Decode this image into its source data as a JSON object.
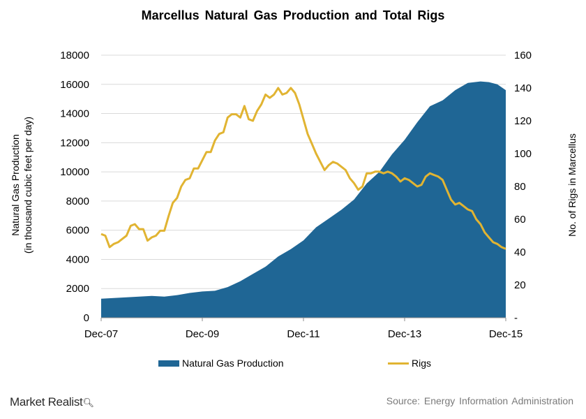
{
  "chart_data": {
    "type": "area+line",
    "title": "Marcellus  Natural  Gas  Production  and  Total  Rigs",
    "x_tick_labels": [
      "Dec-07",
      "Dec-09",
      "Dec-11",
      "Dec-13",
      "Dec-15"
    ],
    "y_left": {
      "label_line1": "Natural Gas Production",
      "label_line2": "(in thousand cubic feet per day)",
      "range": [
        0,
        18000
      ],
      "ticks": [
        0,
        2000,
        4000,
        6000,
        8000,
        10000,
        12000,
        14000,
        16000,
        18000
      ]
    },
    "y_right": {
      "label": "No. of Rigs in Marcellus",
      "range": [
        0,
        160
      ],
      "ticks": [
        "-",
        20,
        40,
        60,
        80,
        100,
        120,
        140,
        160
      ]
    },
    "x_range_months": [
      0,
      96
    ],
    "grid": "horizontal",
    "series": [
      {
        "name": "Natural Gas Production",
        "kind": "area",
        "axis": "left",
        "color": "#1f6695",
        "x": [
          0,
          3,
          6,
          9,
          12,
          15,
          18,
          21,
          24,
          27,
          30,
          33,
          36,
          39,
          42,
          45,
          48,
          51,
          54,
          57,
          60,
          63,
          66,
          69,
          72,
          75,
          78,
          81,
          84,
          87,
          90,
          92,
          94,
          96
        ],
        "values": [
          1300,
          1350,
          1400,
          1450,
          1500,
          1450,
          1550,
          1700,
          1800,
          1850,
          2100,
          2500,
          3000,
          3500,
          4200,
          4700,
          5300,
          6200,
          6800,
          7400,
          8100,
          9200,
          10000,
          11200,
          12200,
          13400,
          14500,
          14900,
          15600,
          16100,
          16200,
          16150,
          16000,
          15600
        ]
      },
      {
        "name": "Rigs",
        "kind": "line",
        "axis": "right",
        "color": "#e1b432",
        "x": [
          0,
          1,
          2,
          3,
          4,
          5,
          6,
          7,
          8,
          9,
          10,
          11,
          12,
          13,
          14,
          15,
          16,
          17,
          18,
          19,
          20,
          21,
          22,
          23,
          24,
          25,
          26,
          27,
          28,
          29,
          30,
          31,
          32,
          33,
          34,
          35,
          36,
          37,
          38,
          39,
          40,
          41,
          42,
          43,
          44,
          45,
          46,
          47,
          48,
          49,
          50,
          51,
          52,
          53,
          54,
          55,
          56,
          57,
          58,
          59,
          60,
          61,
          62,
          63,
          64,
          65,
          66,
          67,
          68,
          69,
          70,
          71,
          72,
          73,
          74,
          75,
          76,
          77,
          78,
          79,
          80,
          81,
          82,
          83,
          84,
          85,
          86,
          87,
          88,
          89,
          90,
          91,
          92,
          93,
          94,
          95,
          96
        ],
        "values": [
          51,
          50,
          43,
          45,
          46,
          48,
          50,
          56,
          57,
          54,
          54,
          47,
          49,
          50,
          53,
          53,
          62,
          70,
          73,
          80,
          84,
          85,
          91,
          91,
          96,
          101,
          101,
          108,
          112,
          113,
          122,
          124,
          124,
          122,
          129,
          121,
          120,
          126,
          130,
          136,
          134,
          136,
          140,
          136,
          137,
          140,
          137,
          130,
          121,
          112,
          106,
          100,
          95,
          90,
          93,
          95,
          94,
          92,
          90,
          85,
          82,
          78,
          80,
          88,
          88,
          89,
          89,
          88,
          89,
          88,
          86,
          83,
          85,
          84,
          82,
          80,
          81,
          86,
          88,
          87,
          86,
          84,
          78,
          72,
          69,
          70,
          68,
          66,
          65,
          60,
          57,
          52,
          49,
          46,
          45,
          43,
          42
        ]
      }
    ]
  },
  "legend": {
    "area_label": "Natural Gas Production",
    "line_label": "Rigs"
  },
  "footer": {
    "logo_text": "Market Realist",
    "source": "Source:  Energy  Information  Administration"
  },
  "colors": {
    "area": "#1f6695",
    "line": "#e1b432",
    "grid": "#d9d9d9"
  }
}
